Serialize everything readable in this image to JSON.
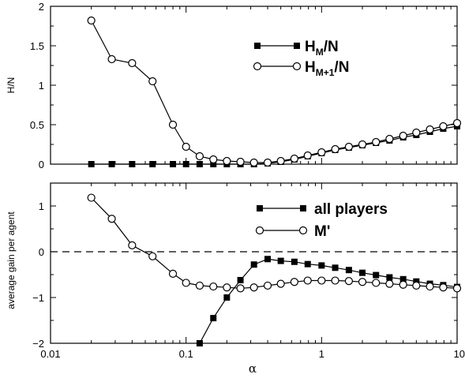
{
  "chart_data": [
    {
      "type": "line",
      "xscale": "log",
      "xlim": [
        0.01,
        10
      ],
      "ylim": [
        0,
        2
      ],
      "xlabel": "",
      "ylabel": "H/N",
      "yticks": [
        "0",
        "0.5",
        "1",
        "1.5",
        "2"
      ],
      "grid": false,
      "legend_placement": "top-right",
      "series": [
        {
          "name": "H_M/N",
          "marker": "filled-square",
          "x": [
            0.02,
            0.0283,
            0.04,
            0.0566,
            0.08,
            0.1,
            0.126,
            0.159,
            0.2,
            0.252,
            0.317,
            0.4,
            0.5,
            0.63,
            0.79,
            1.0,
            1.26,
            1.59,
            2.0,
            2.52,
            3.17,
            4.0,
            5.0,
            6.3,
            7.9,
            10.0
          ],
          "y": [
            0,
            0,
            0,
            0,
            0,
            0,
            0,
            0,
            0,
            0,
            0,
            0.01,
            0.03,
            0.06,
            0.1,
            0.14,
            0.18,
            0.21,
            0.24,
            0.27,
            0.3,
            0.34,
            0.37,
            0.41,
            0.45,
            0.48
          ]
        },
        {
          "name": "H_M+1/N",
          "marker": "open-circle",
          "x": [
            0.02,
            0.0283,
            0.04,
            0.0566,
            0.08,
            0.1,
            0.126,
            0.159,
            0.2,
            0.252,
            0.317,
            0.4,
            0.5,
            0.63,
            0.79,
            1.0,
            1.26,
            1.59,
            2.0,
            2.52,
            3.17,
            4.0,
            5.0,
            6.3,
            7.9,
            10.0
          ],
          "y": [
            1.82,
            1.33,
            1.28,
            1.05,
            0.5,
            0.22,
            0.1,
            0.06,
            0.04,
            0.03,
            0.02,
            0.02,
            0.04,
            0.07,
            0.11,
            0.15,
            0.19,
            0.22,
            0.25,
            0.28,
            0.32,
            0.36,
            0.4,
            0.44,
            0.48,
            0.52
          ]
        }
      ]
    },
    {
      "type": "line",
      "xscale": "log",
      "xlim": [
        0.01,
        10
      ],
      "ylim": [
        -2,
        1.5
      ],
      "xlabel": "α",
      "ylabel": "average gain per agent",
      "xticks": [
        "0.01",
        "0.1",
        "1",
        "10"
      ],
      "yticks": [
        "−2",
        "−1",
        "0",
        "1"
      ],
      "reference_line": {
        "y": 0,
        "style": "dashed"
      },
      "grid": false,
      "legend_placement": "top-right",
      "series": [
        {
          "name": "all players",
          "marker": "filled-square",
          "x": [
            0.126,
            0.159,
            0.2,
            0.252,
            0.317,
            0.4,
            0.5,
            0.63,
            0.79,
            1.0,
            1.26,
            1.59,
            2.0,
            2.52,
            3.17,
            4.0,
            5.0,
            6.3,
            7.9,
            10.0
          ],
          "y": [
            -2.0,
            -1.45,
            -1.0,
            -0.62,
            -0.28,
            -0.16,
            -0.2,
            -0.22,
            -0.27,
            -0.3,
            -0.35,
            -0.4,
            -0.46,
            -0.51,
            -0.56,
            -0.6,
            -0.65,
            -0.7,
            -0.73,
            -0.77
          ]
        },
        {
          "name": "M'",
          "marker": "open-circle",
          "x": [
            0.02,
            0.0283,
            0.04,
            0.0566,
            0.08,
            0.1,
            0.126,
            0.159,
            0.2,
            0.252,
            0.317,
            0.4,
            0.5,
            0.63,
            0.79,
            1.0,
            1.26,
            1.59,
            2.0,
            2.52,
            3.17,
            4.0,
            5.0,
            6.3,
            7.9,
            10.0
          ],
          "y": [
            1.18,
            0.72,
            0.14,
            -0.1,
            -0.48,
            -0.68,
            -0.74,
            -0.76,
            -0.78,
            -0.8,
            -0.78,
            -0.74,
            -0.7,
            -0.66,
            -0.63,
            -0.63,
            -0.63,
            -0.64,
            -0.66,
            -0.68,
            -0.7,
            -0.72,
            -0.74,
            -0.76,
            -0.78,
            -0.8
          ]
        }
      ]
    }
  ],
  "legend": {
    "top": [
      {
        "main": "H",
        "sub": "M",
        "suffix": "/N"
      },
      {
        "main": "H",
        "sub": "M+1",
        "suffix": "/N"
      }
    ],
    "bottom": [
      {
        "label": "all players"
      },
      {
        "label": "M'"
      }
    ]
  }
}
